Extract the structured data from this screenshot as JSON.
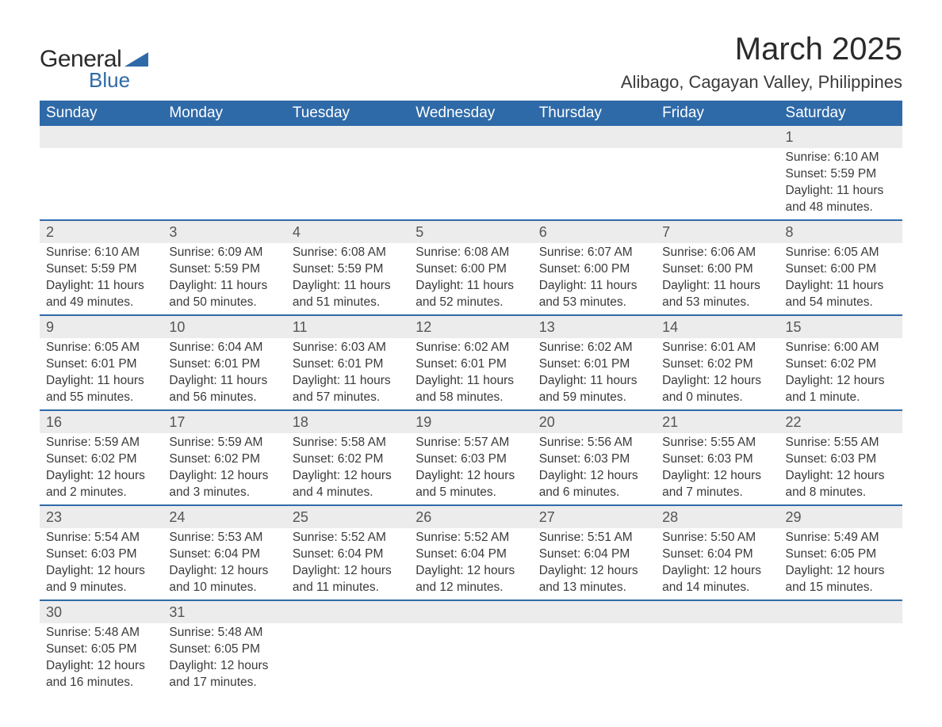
{
  "logo": {
    "text1": "General",
    "text2": "Blue"
  },
  "title": "March 2025",
  "location": "Alibago, Cagayan Valley, Philippines",
  "colors": {
    "header_bg": "#2f6aa8",
    "header_text": "#ffffff",
    "daynum_bg": "#ececec",
    "row_border": "#2f6aa8",
    "body_text": "#3a3a3a",
    "page_bg": "#ffffff"
  },
  "typography": {
    "title_fontsize": 40,
    "location_fontsize": 22,
    "th_fontsize": 19,
    "cell_fontsize": 15.5,
    "daynum_fontsize": 18
  },
  "weekdays": [
    "Sunday",
    "Monday",
    "Tuesday",
    "Wednesday",
    "Thursday",
    "Friday",
    "Saturday"
  ],
  "weeks": [
    [
      null,
      null,
      null,
      null,
      null,
      null,
      {
        "n": "1",
        "sunrise": "Sunrise: 6:10 AM",
        "sunset": "Sunset: 5:59 PM",
        "daylight": "Daylight: 11 hours and 48 minutes."
      }
    ],
    [
      {
        "n": "2",
        "sunrise": "Sunrise: 6:10 AM",
        "sunset": "Sunset: 5:59 PM",
        "daylight": "Daylight: 11 hours and 49 minutes."
      },
      {
        "n": "3",
        "sunrise": "Sunrise: 6:09 AM",
        "sunset": "Sunset: 5:59 PM",
        "daylight": "Daylight: 11 hours and 50 minutes."
      },
      {
        "n": "4",
        "sunrise": "Sunrise: 6:08 AM",
        "sunset": "Sunset: 5:59 PM",
        "daylight": "Daylight: 11 hours and 51 minutes."
      },
      {
        "n": "5",
        "sunrise": "Sunrise: 6:08 AM",
        "sunset": "Sunset: 6:00 PM",
        "daylight": "Daylight: 11 hours and 52 minutes."
      },
      {
        "n": "6",
        "sunrise": "Sunrise: 6:07 AM",
        "sunset": "Sunset: 6:00 PM",
        "daylight": "Daylight: 11 hours and 53 minutes."
      },
      {
        "n": "7",
        "sunrise": "Sunrise: 6:06 AM",
        "sunset": "Sunset: 6:00 PM",
        "daylight": "Daylight: 11 hours and 53 minutes."
      },
      {
        "n": "8",
        "sunrise": "Sunrise: 6:05 AM",
        "sunset": "Sunset: 6:00 PM",
        "daylight": "Daylight: 11 hours and 54 minutes."
      }
    ],
    [
      {
        "n": "9",
        "sunrise": "Sunrise: 6:05 AM",
        "sunset": "Sunset: 6:01 PM",
        "daylight": "Daylight: 11 hours and 55 minutes."
      },
      {
        "n": "10",
        "sunrise": "Sunrise: 6:04 AM",
        "sunset": "Sunset: 6:01 PM",
        "daylight": "Daylight: 11 hours and 56 minutes."
      },
      {
        "n": "11",
        "sunrise": "Sunrise: 6:03 AM",
        "sunset": "Sunset: 6:01 PM",
        "daylight": "Daylight: 11 hours and 57 minutes."
      },
      {
        "n": "12",
        "sunrise": "Sunrise: 6:02 AM",
        "sunset": "Sunset: 6:01 PM",
        "daylight": "Daylight: 11 hours and 58 minutes."
      },
      {
        "n": "13",
        "sunrise": "Sunrise: 6:02 AM",
        "sunset": "Sunset: 6:01 PM",
        "daylight": "Daylight: 11 hours and 59 minutes."
      },
      {
        "n": "14",
        "sunrise": "Sunrise: 6:01 AM",
        "sunset": "Sunset: 6:02 PM",
        "daylight": "Daylight: 12 hours and 0 minutes."
      },
      {
        "n": "15",
        "sunrise": "Sunrise: 6:00 AM",
        "sunset": "Sunset: 6:02 PM",
        "daylight": "Daylight: 12 hours and 1 minute."
      }
    ],
    [
      {
        "n": "16",
        "sunrise": "Sunrise: 5:59 AM",
        "sunset": "Sunset: 6:02 PM",
        "daylight": "Daylight: 12 hours and 2 minutes."
      },
      {
        "n": "17",
        "sunrise": "Sunrise: 5:59 AM",
        "sunset": "Sunset: 6:02 PM",
        "daylight": "Daylight: 12 hours and 3 minutes."
      },
      {
        "n": "18",
        "sunrise": "Sunrise: 5:58 AM",
        "sunset": "Sunset: 6:02 PM",
        "daylight": "Daylight: 12 hours and 4 minutes."
      },
      {
        "n": "19",
        "sunrise": "Sunrise: 5:57 AM",
        "sunset": "Sunset: 6:03 PM",
        "daylight": "Daylight: 12 hours and 5 minutes."
      },
      {
        "n": "20",
        "sunrise": "Sunrise: 5:56 AM",
        "sunset": "Sunset: 6:03 PM",
        "daylight": "Daylight: 12 hours and 6 minutes."
      },
      {
        "n": "21",
        "sunrise": "Sunrise: 5:55 AM",
        "sunset": "Sunset: 6:03 PM",
        "daylight": "Daylight: 12 hours and 7 minutes."
      },
      {
        "n": "22",
        "sunrise": "Sunrise: 5:55 AM",
        "sunset": "Sunset: 6:03 PM",
        "daylight": "Daylight: 12 hours and 8 minutes."
      }
    ],
    [
      {
        "n": "23",
        "sunrise": "Sunrise: 5:54 AM",
        "sunset": "Sunset: 6:03 PM",
        "daylight": "Daylight: 12 hours and 9 minutes."
      },
      {
        "n": "24",
        "sunrise": "Sunrise: 5:53 AM",
        "sunset": "Sunset: 6:04 PM",
        "daylight": "Daylight: 12 hours and 10 minutes."
      },
      {
        "n": "25",
        "sunrise": "Sunrise: 5:52 AM",
        "sunset": "Sunset: 6:04 PM",
        "daylight": "Daylight: 12 hours and 11 minutes."
      },
      {
        "n": "26",
        "sunrise": "Sunrise: 5:52 AM",
        "sunset": "Sunset: 6:04 PM",
        "daylight": "Daylight: 12 hours and 12 minutes."
      },
      {
        "n": "27",
        "sunrise": "Sunrise: 5:51 AM",
        "sunset": "Sunset: 6:04 PM",
        "daylight": "Daylight: 12 hours and 13 minutes."
      },
      {
        "n": "28",
        "sunrise": "Sunrise: 5:50 AM",
        "sunset": "Sunset: 6:04 PM",
        "daylight": "Daylight: 12 hours and 14 minutes."
      },
      {
        "n": "29",
        "sunrise": "Sunrise: 5:49 AM",
        "sunset": "Sunset: 6:05 PM",
        "daylight": "Daylight: 12 hours and 15 minutes."
      }
    ],
    [
      {
        "n": "30",
        "sunrise": "Sunrise: 5:48 AM",
        "sunset": "Sunset: 6:05 PM",
        "daylight": "Daylight: 12 hours and 16 minutes."
      },
      {
        "n": "31",
        "sunrise": "Sunrise: 5:48 AM",
        "sunset": "Sunset: 6:05 PM",
        "daylight": "Daylight: 12 hours and 17 minutes."
      },
      null,
      null,
      null,
      null,
      null
    ]
  ]
}
